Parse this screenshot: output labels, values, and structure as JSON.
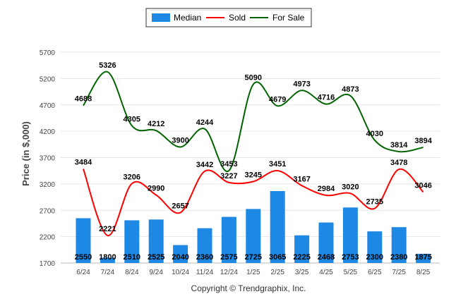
{
  "chart_data": {
    "type": "bar",
    "categories": [
      "6/24",
      "7/24",
      "8/24",
      "9/24",
      "10/24",
      "11/24",
      "12/24",
      "1/25",
      "2/25",
      "3/25",
      "4/25",
      "5/25",
      "6/25",
      "7/25",
      "8/25"
    ],
    "series": [
      {
        "name": "Median",
        "type": "bar",
        "color": "#1e88e5",
        "values": [
          2550,
          1800,
          2510,
          2525,
          2040,
          2360,
          2575,
          2725,
          3065,
          2225,
          2468,
          2753,
          2300,
          2380,
          1875
        ]
      },
      {
        "name": "Sold",
        "type": "line",
        "color": "#ff0000",
        "values": [
          3484,
          2221,
          3206,
          2990,
          2657,
          3442,
          3227,
          3245,
          3451,
          3167,
          2984,
          3020,
          2735,
          3478,
          3046
        ]
      },
      {
        "name": "For Sale",
        "type": "line",
        "color": "#006400",
        "values": [
          4688,
          5326,
          4305,
          4212,
          3900,
          4244,
          3453,
          5090,
          4679,
          4973,
          4716,
          4873,
          4030,
          3814,
          3894
        ]
      }
    ],
    "ylabel": "Price (in $,000)",
    "xlabel": "",
    "ylim": [
      1700,
      5700
    ],
    "yticks": [
      1700,
      2200,
      2700,
      3200,
      3700,
      4200,
      4700,
      5200,
      5700
    ],
    "grid": true,
    "legend_position": "top-center"
  },
  "footer": {
    "copyright": "Copyright © Trendgraphix, Inc."
  }
}
